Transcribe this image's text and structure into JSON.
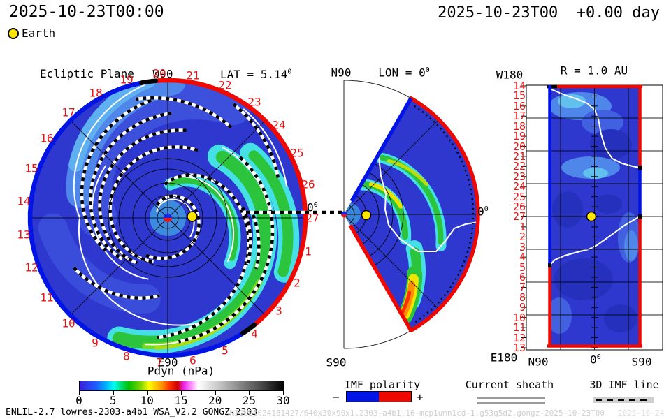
{
  "header": {
    "timestamp_left": "2025-10-23T00:00",
    "timestamp_right": "2025-10-23T00  +0.00 day",
    "earth_label": "Earth"
  },
  "ecliptic_panel": {
    "title": "Ecliptic Plane",
    "top_label": "W90",
    "lat_label": "LAT = 5.14",
    "lat_sup": "0",
    "bottom_label": "E90",
    "zero_deg": "0",
    "zero_deg_sup": "0",
    "day_labels": [
      "1",
      "2",
      "3",
      "4",
      "5",
      "6",
      "7",
      "8",
      "9",
      "10",
      "11",
      "12",
      "13",
      "14",
      "15",
      "16",
      "17",
      "18",
      "19",
      "20",
      "21",
      "22",
      "23",
      "24",
      "25",
      "26",
      "27"
    ]
  },
  "meridional_panel": {
    "top_label": "N90",
    "lon_label": "LON = 0",
    "lon_sup": "0",
    "bottom_label": "S90",
    "zero_deg": "0",
    "zero_deg_sup": "0"
  },
  "radial_panel": {
    "title": "R = 1.0 AU",
    "top_left_label": "W180",
    "bottom_left_label": "E180",
    "x_left": "N90",
    "x_center": "0",
    "x_center_sup": "0",
    "x_right": "S90",
    "day_labels": [
      "14",
      "15",
      "16",
      "17",
      "18",
      "19",
      "20",
      "21",
      "22",
      "23",
      "24",
      "25",
      "26",
      "27",
      "1",
      "2",
      "3",
      "4",
      "5",
      "6",
      "7",
      "8",
      "9",
      "10",
      "11",
      "12",
      "13"
    ]
  },
  "colorbar": {
    "label": "Pdyn (nPa)",
    "ticks": [
      "0",
      "5",
      "10",
      "15",
      "20",
      "25",
      "30"
    ]
  },
  "legends": {
    "imf_polarity": {
      "title": "IMF polarity",
      "minus": "−",
      "plus": "+"
    },
    "current_sheath": {
      "title": "Current sheath"
    },
    "imf_line_3d": {
      "title": "3D IMF line"
    }
  },
  "footer": {
    "model_info": "ENLIL-2.7 lowres-2303-a4b1 WSA_V2.2 GONGZ-2303",
    "watermark": "UNIQUE1024181427/640x30x90x1.2303-a4b1.16-mcp1umn1cd-1.g53q5d2.gongz-2025-10-23T00",
    "watermark_date": "2025-10-24"
  },
  "colors": {
    "background": "#ffffff",
    "label_red": "#e81414",
    "rim_positive_red": "#ee0800",
    "rim_negative_blue": "#0014e6",
    "earth_yellow": "#ffe600",
    "base_plasma_blue": "#2e38cf",
    "stream_green": "#2cc43c",
    "stream_cyan": "#45e0e6",
    "watermark_gray": "#cfcfcf"
  },
  "chart_data": {
    "type": "heatmap",
    "model": "WSA-ENLIL heliospheric solar wind simulation",
    "quantity": "dynamic pressure Pdyn",
    "units": "nPa",
    "scale": {
      "min": 0,
      "max": 30,
      "ticks": [
        0,
        5,
        10,
        15,
        20,
        25,
        30
      ]
    },
    "snapshot_time": "2025-10-23T00:00",
    "forecast_offset_days": 0.0,
    "panels": [
      {
        "name": "ecliptic-plane",
        "projection": "polar disk, Sun at center, Earth at right of center",
        "latitude_deg": 5.14,
        "angular_axis": "day of month, 1-27, increasing counterclockwise, 27 at right (0 deg)",
        "landmarks": {
          "top": "W90",
          "bottom": "E90",
          "right": "0 deg"
        },
        "features": [
          "background ~1-2 nPa (blue)",
          "spiral high-speed stream ~4-8 nPa (green/cyan) sweeping from bottom rim (days 7-8) up the right side toward days 25-27 and inward past Earth",
          "lighter ~2-3 nPa spiral in upper-left quadrant",
          "IMF polarity rim: red (+) from ~day 4 through day 20 (via 27), blue (−) from ~day 20 through day 5",
          "dashed/checkered 3D IMF field lines spiraling from Sun",
          "black dashed sight-line from Earth to 0 deg"
        ]
      },
      {
        "name": "meridional-plane",
        "longitude_deg": 0,
        "extent": "wedge ±60 deg about equator, full N90-S90 frame outlined",
        "landmarks": {
          "top": "N90",
          "bottom": "S90",
          "right": "0 deg"
        },
        "features": [
          "two arc-shaped stream bands ~4-9 nPa (green/yellow) north of equator",
          "localized maximum ~10-14 nPa (orange/red) near southern boundary",
          "white current sheet line",
          "outer boundary red (+), northern inner edge blue (−), southern inner edge red (+)"
        ]
      },
      {
        "name": "constant-radius-map",
        "radius_au": 1.0,
        "x_axis": "latitude N90 to 0 to S90 (colored region ±60 deg)",
        "y_axis": "day of month 14 (top) to 13 (bottom), Earth epoch at day 27",
        "features": [
          "mostly 0-3 nPa (blue) with lighter ~3 nPa patches near days 14-16, 21-23 and 1-5",
          "white current-sheet crossing from N at day 14 to S at day 22, and S at day 27 to N at day 5",
          "left border blue (−) days 14-5 then red (+), right border red (+) days 14-22, blue (−) 22-27, red (+) 27-13",
          "Earth marker at 0 deg latitude, day 27"
        ]
      }
    ],
    "markers": [
      {
        "label": "Earth",
        "color": "#ffe600"
      },
      {
        "label": "Sun",
        "colors": [
          "#0014e6",
          "#ee0800"
        ]
      }
    ],
    "legend_entries": [
      "IMF polarity − / +",
      "Current sheath",
      "3D IMF line"
    ]
  }
}
